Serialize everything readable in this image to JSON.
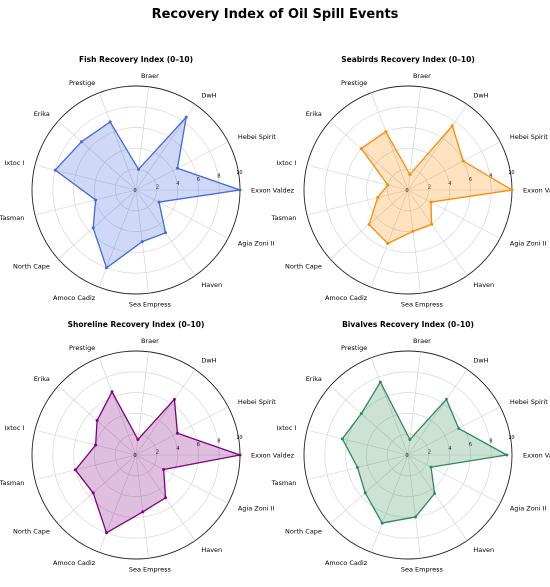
{
  "title": "Recovery Index of Oil Spill Events",
  "chart_data": [
    {
      "type": "radar",
      "title": "Fish Recovery Index (0–10)",
      "categories": [
        "Exxon Valdez",
        "Hebei Spirit",
        "DwH",
        "Braer",
        "Prestige",
        "Erika",
        "Ixtoc I",
        "Tasman",
        "North Cape",
        "Amoco Cadiz",
        "Sea Empress",
        "Haven",
        "Agia Zoni II"
      ],
      "values": [
        10.0,
        4.5,
        8.5,
        2.0,
        7.0,
        7.0,
        8.0,
        4.0,
        5.5,
        8.0,
        5.0,
        5.0,
        2.5
      ],
      "rlim": [
        0,
        10
      ],
      "rticks": [
        0,
        2,
        4,
        6,
        8,
        10
      ],
      "color": "#4169e1"
    },
    {
      "type": "radar",
      "title": "Seabirds Recovery Index (0–10)",
      "categories": [
        "Exxon Valdez",
        "Hebei Spirit",
        "DwH",
        "Braer",
        "Prestige",
        "Erika",
        "Ixtoc I",
        "Tasman",
        "North Cape",
        "Amoco Cadiz",
        "Sea Empress",
        "Haven",
        "Agia Zoni II"
      ],
      "values": [
        10.0,
        6.0,
        7.5,
        1.5,
        6.0,
        6.0,
        2.0,
        3.0,
        5.0,
        5.5,
        4.0,
        4.0,
        2.5
      ],
      "rlim": [
        0,
        10
      ],
      "rticks": [
        0,
        2,
        4,
        6,
        8,
        10
      ],
      "color": "#ff8c00"
    },
    {
      "type": "radar",
      "title": "Shoreline Recovery Index (0–10)",
      "categories": [
        "Exxon Valdez",
        "Hebei Spirit",
        "DwH",
        "Braer",
        "Prestige",
        "Erika",
        "Ixtoc I",
        "Tasman",
        "North Cape",
        "Amoco Cadiz",
        "Sea Empress",
        "Haven",
        "Agia Zoni II"
      ],
      "values": [
        10.0,
        4.5,
        6.5,
        1.5,
        6.5,
        5.0,
        4.0,
        6.0,
        5.5,
        8.0,
        5.5,
        5.0,
        3.0
      ],
      "rlim": [
        0,
        10
      ],
      "rticks": [
        0,
        2,
        4,
        6,
        8,
        10
      ],
      "color": "#800080"
    },
    {
      "type": "radar",
      "title": "Bivalves Recovery Index (0–10)",
      "categories": [
        "Exxon Valdez",
        "Hebei Spirit",
        "DwH",
        "Braer",
        "Prestige",
        "Erika",
        "Ixtoc I",
        "Tasman",
        "North Cape",
        "Amoco Cadiz",
        "Sea Empress",
        "Haven",
        "Agia Zoni II"
      ],
      "values": [
        9.5,
        5.5,
        6.5,
        1.5,
        7.5,
        6.0,
        6.5,
        5.0,
        5.5,
        7.0,
        6.0,
        4.5,
        2.5
      ],
      "rlim": [
        0,
        10
      ],
      "rticks": [
        0,
        2,
        4,
        6,
        8,
        10
      ],
      "color": "#2e8b57"
    }
  ]
}
